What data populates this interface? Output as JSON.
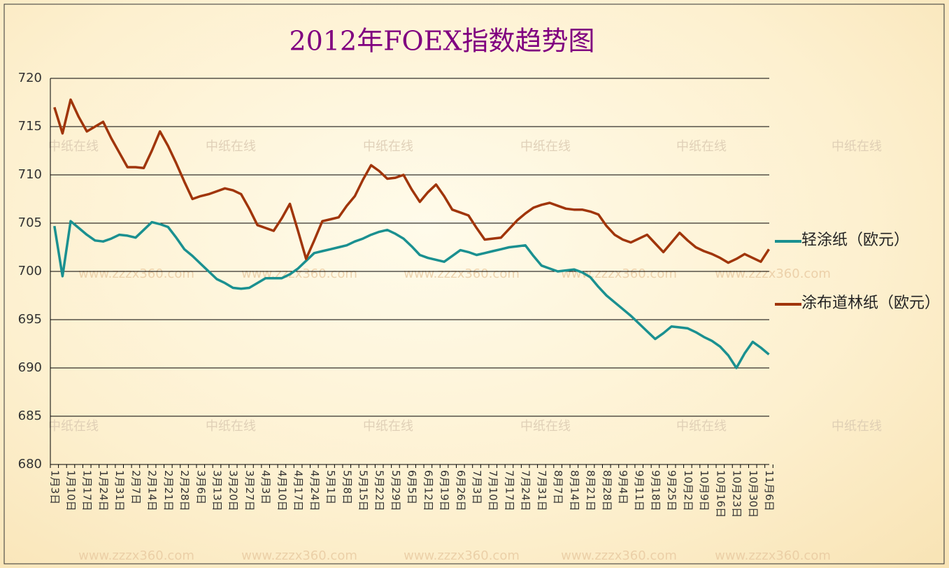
{
  "chart_data": {
    "type": "line",
    "title": "2012年FOEX指数趋势图",
    "watermarks": [
      "中纸在线",
      "www.zzzx360.com"
    ],
    "categories": [
      "1月3日",
      null,
      "1月10日",
      null,
      "1月17日",
      null,
      "1月24日",
      null,
      "1月31日",
      null,
      "2月7日",
      null,
      "2月14日",
      null,
      "2月21日",
      null,
      "2月28日",
      null,
      "3月6日",
      null,
      "3月13日",
      null,
      "3月20日",
      null,
      "3月27日",
      null,
      "4月3日",
      null,
      "4月10日",
      null,
      "4月17日",
      null,
      "4月24日",
      null,
      "5月1日",
      null,
      "5月8日",
      null,
      "5月15日",
      null,
      "5月22日",
      null,
      "5月29日",
      null,
      "6月5日",
      null,
      "6月12日",
      null,
      "6月19日",
      null,
      "6月26日",
      null,
      "7月3日",
      null,
      "7月10日",
      null,
      "7月17日",
      null,
      "7月24日",
      null,
      "7月31日",
      null,
      "8月7日",
      null,
      "8月14日",
      null,
      "8月21日",
      null,
      "8月28日",
      null,
      "9月4日",
      null,
      "9月11日",
      null,
      "9月18日",
      null,
      "9月25日",
      null,
      "10月2日",
      null,
      "10月9日",
      null,
      "10月16日",
      null,
      "10月23日",
      null,
      "10月30日",
      null,
      "11月6日"
    ],
    "series": [
      {
        "name": "轻涂纸（欧元）",
        "color": "#1a9090",
        "values": [
          704.7,
          699.5,
          705.2,
          704.5,
          703.8,
          703.2,
          703.1,
          703.4,
          703.8,
          703.7,
          703.5,
          704.3,
          705.1,
          704.9,
          704.6,
          703.5,
          702.3,
          701.6,
          700.8,
          700.0,
          699.2,
          698.8,
          698.3,
          698.2,
          698.3,
          698.8,
          699.3,
          699.3,
          699.3,
          699.7,
          700.3,
          701.1,
          701.9,
          702.1,
          702.3,
          702.5,
          702.7,
          703.1,
          703.4,
          703.8,
          704.1,
          704.3,
          703.9,
          703.4,
          702.6,
          701.7,
          701.4,
          701.2,
          701.0,
          701.6,
          702.2,
          702.0,
          701.7,
          701.9,
          702.1,
          702.3,
          702.5,
          702.6,
          702.7,
          701.6,
          700.6,
          700.3,
          700.0,
          700.1,
          700.2,
          699.9,
          699.4,
          698.4,
          697.5,
          696.8,
          696.1,
          695.4,
          694.6,
          693.8,
          693.0,
          693.6,
          694.3,
          694.2,
          694.1,
          693.7,
          693.2,
          692.8,
          692.2,
          691.3,
          690.0,
          691.5,
          692.7,
          692.1,
          691.4
        ]
      },
      {
        "name": "涂布道林纸（欧元）",
        "color": "#a0350a",
        "values": [
          717.0,
          714.3,
          717.8,
          716.0,
          714.5,
          715.0,
          715.5,
          713.8,
          712.3,
          710.8,
          710.8,
          710.7,
          712.5,
          714.5,
          713.0,
          711.2,
          709.3,
          707.5,
          707.8,
          708.0,
          708.3,
          708.6,
          708.4,
          708.0,
          706.5,
          704.8,
          704.5,
          704.2,
          705.5,
          707.0,
          704.2,
          701.3,
          703.2,
          705.2,
          705.4,
          705.6,
          706.8,
          707.8,
          709.5,
          711.0,
          710.4,
          709.6,
          709.7,
          710.0,
          708.5,
          707.2,
          708.2,
          709.0,
          707.8,
          706.4,
          706.1,
          705.8,
          704.5,
          703.3,
          703.4,
          703.5,
          704.4,
          705.3,
          706.0,
          706.6,
          706.9,
          707.1,
          706.8,
          706.5,
          706.4,
          706.4,
          706.2,
          705.9,
          704.7,
          703.8,
          703.3,
          703.0,
          703.4,
          703.8,
          702.9,
          702.0,
          703.0,
          704.0,
          703.2,
          702.5,
          702.1,
          701.8,
          701.4,
          700.9,
          701.3,
          701.8,
          701.4,
          701.0,
          702.3
        ]
      }
    ],
    "ylim": [
      680,
      720
    ],
    "yticks": [
      680,
      685,
      690,
      695,
      700,
      705,
      710,
      715,
      720
    ],
    "grid": true
  }
}
